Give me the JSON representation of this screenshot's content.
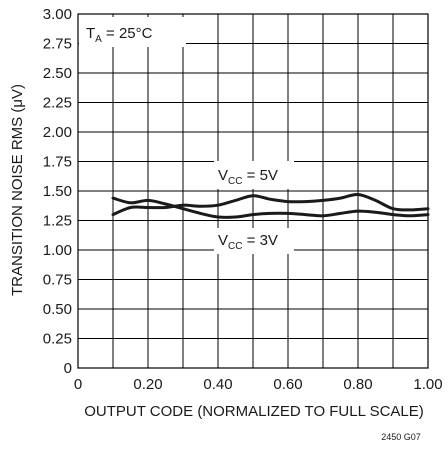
{
  "chart_data": {
    "type": "line",
    "xlabel": "OUTPUT CODE (NORMALIZED TO FULL SCALE)",
    "ylabel": "TRANSITION NOISE RMS (μV)",
    "xlim": [
      0,
      1.0
    ],
    "ylim": [
      0,
      3.0
    ],
    "x_ticks": [
      "0",
      "0.20",
      "0.40",
      "0.60",
      "0.80",
      "1.00"
    ],
    "y_ticks": [
      "0",
      "0.25",
      "0.50",
      "0.75",
      "1.00",
      "1.25",
      "1.50",
      "1.75",
      "2.00",
      "2.25",
      "2.50",
      "2.75",
      "3.00"
    ],
    "grid": true,
    "annotations": {
      "temp": {
        "main": "T",
        "sub": "A",
        "rest": " = 25°C"
      },
      "vcc5": {
        "main": "V",
        "sub": "CC",
        "rest": " = 5V"
      },
      "vcc3": {
        "main": "V",
        "sub": "CC",
        "rest": " = 3V"
      }
    },
    "figure_id": "2450 G07",
    "series": [
      {
        "label_ref": "vcc5",
        "points": [
          [
            0.1,
            1.3
          ],
          [
            0.15,
            1.36
          ],
          [
            0.2,
            1.36
          ],
          [
            0.25,
            1.36
          ],
          [
            0.3,
            1.38
          ],
          [
            0.35,
            1.37
          ],
          [
            0.4,
            1.38
          ],
          [
            0.45,
            1.42
          ],
          [
            0.5,
            1.46
          ],
          [
            0.55,
            1.43
          ],
          [
            0.6,
            1.41
          ],
          [
            0.65,
            1.41
          ],
          [
            0.7,
            1.42
          ],
          [
            0.75,
            1.44
          ],
          [
            0.8,
            1.47
          ],
          [
            0.85,
            1.42
          ],
          [
            0.9,
            1.35
          ],
          [
            0.95,
            1.34
          ],
          [
            1.0,
            1.35
          ]
        ]
      },
      {
        "label_ref": "vcc3",
        "points": [
          [
            0.1,
            1.44
          ],
          [
            0.15,
            1.4
          ],
          [
            0.2,
            1.42
          ],
          [
            0.25,
            1.39
          ],
          [
            0.3,
            1.35
          ],
          [
            0.35,
            1.31
          ],
          [
            0.4,
            1.28
          ],
          [
            0.45,
            1.28
          ],
          [
            0.5,
            1.3
          ],
          [
            0.55,
            1.31
          ],
          [
            0.6,
            1.31
          ],
          [
            0.65,
            1.3
          ],
          [
            0.7,
            1.29
          ],
          [
            0.75,
            1.31
          ],
          [
            0.8,
            1.33
          ],
          [
            0.85,
            1.32
          ],
          [
            0.9,
            1.3
          ],
          [
            0.95,
            1.29
          ],
          [
            1.0,
            1.3
          ]
        ]
      }
    ]
  }
}
